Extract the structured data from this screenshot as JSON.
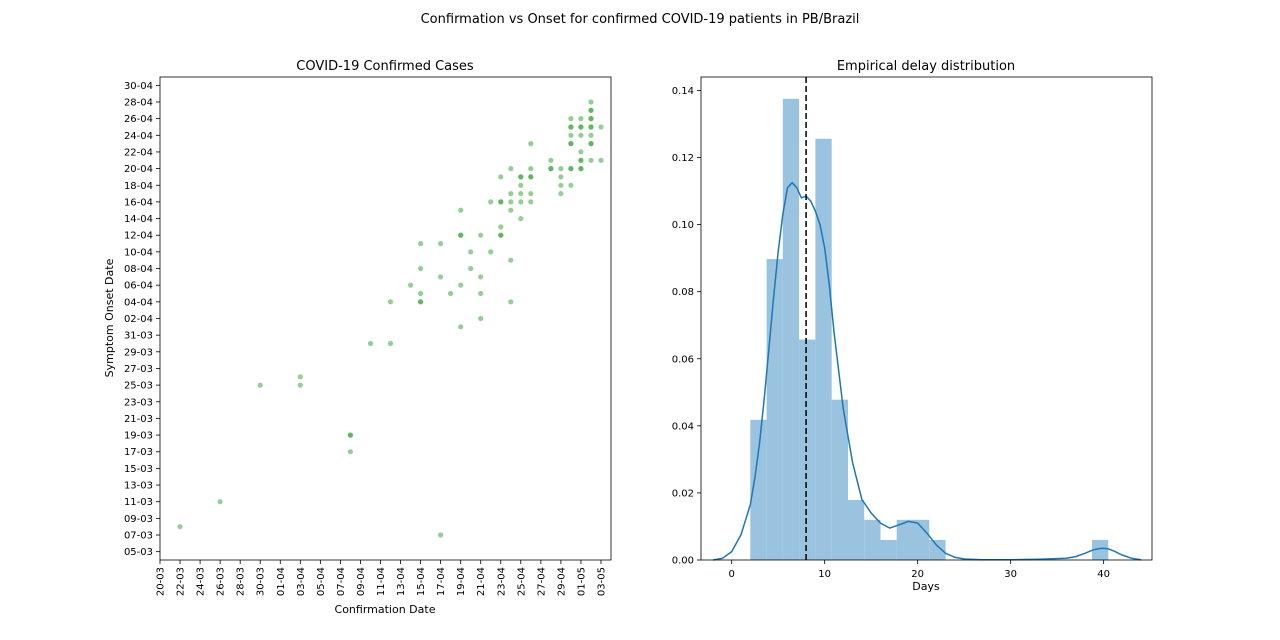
{
  "figure": {
    "title": "Confirmation vs Onset for confirmed COVID-19 patients in PB/Brazil"
  },
  "chart_data": [
    {
      "type": "scatter",
      "title": "COVID-19 Confirmed Cases",
      "xlabel": "Confirmation Date",
      "ylabel": "Symptom Onset Date",
      "x_ticks": [
        "20-03",
        "22-03",
        "24-03",
        "26-03",
        "28-03",
        "30-03",
        "01-04",
        "03-04",
        "05-04",
        "07-04",
        "09-04",
        "11-04",
        "13-04",
        "15-04",
        "17-04",
        "19-04",
        "21-04",
        "23-04",
        "25-04",
        "27-04",
        "29-04",
        "01-05",
        "03-05"
      ],
      "y_ticks": [
        "05-03",
        "07-03",
        "09-03",
        "11-03",
        "13-03",
        "15-03",
        "17-03",
        "19-03",
        "21-03",
        "23-03",
        "25-03",
        "27-03",
        "29-03",
        "31-03",
        "02-04",
        "04-04",
        "06-04",
        "08-04",
        "10-04",
        "12-04",
        "14-04",
        "16-04",
        "18-04",
        "20-04",
        "22-04",
        "24-04",
        "26-04",
        "28-04",
        "30-04"
      ],
      "xlim": [
        "20-03",
        "04-05"
      ],
      "ylim": [
        "04-03",
        "01-05"
      ],
      "marker_color": "#2ca02c",
      "points": [
        {
          "x": "22-03",
          "y": "08-03"
        },
        {
          "x": "26-03",
          "y": "11-03"
        },
        {
          "x": "30-03",
          "y": "25-03"
        },
        {
          "x": "03-04",
          "y": "25-03"
        },
        {
          "x": "03-04",
          "y": "26-03"
        },
        {
          "x": "08-04",
          "y": "17-03"
        },
        {
          "x": "08-04",
          "y": "19-03"
        },
        {
          "x": "08-04",
          "y": "19-03"
        },
        {
          "x": "10-04",
          "y": "30-03"
        },
        {
          "x": "12-04",
          "y": "30-03"
        },
        {
          "x": "12-04",
          "y": "04-04"
        },
        {
          "x": "14-04",
          "y": "06-04"
        },
        {
          "x": "15-04",
          "y": "04-04"
        },
        {
          "x": "15-04",
          "y": "04-04"
        },
        {
          "x": "15-04",
          "y": "05-04"
        },
        {
          "x": "15-04",
          "y": "08-04"
        },
        {
          "x": "15-04",
          "y": "11-04"
        },
        {
          "x": "17-04",
          "y": "07-03"
        },
        {
          "x": "17-04",
          "y": "07-04"
        },
        {
          "x": "17-04",
          "y": "11-04"
        },
        {
          "x": "18-04",
          "y": "05-04"
        },
        {
          "x": "19-04",
          "y": "01-04"
        },
        {
          "x": "19-04",
          "y": "06-04"
        },
        {
          "x": "19-04",
          "y": "12-04"
        },
        {
          "x": "19-04",
          "y": "12-04"
        },
        {
          "x": "19-04",
          "y": "15-04"
        },
        {
          "x": "20-04",
          "y": "08-04"
        },
        {
          "x": "20-04",
          "y": "10-04"
        },
        {
          "x": "21-04",
          "y": "02-04"
        },
        {
          "x": "21-04",
          "y": "05-04"
        },
        {
          "x": "21-04",
          "y": "07-04"
        },
        {
          "x": "21-04",
          "y": "12-04"
        },
        {
          "x": "22-04",
          "y": "10-04"
        },
        {
          "x": "22-04",
          "y": "16-04"
        },
        {
          "x": "23-04",
          "y": "12-04"
        },
        {
          "x": "23-04",
          "y": "12-04"
        },
        {
          "x": "23-04",
          "y": "13-04"
        },
        {
          "x": "23-04",
          "y": "16-04"
        },
        {
          "x": "23-04",
          "y": "16-04"
        },
        {
          "x": "23-04",
          "y": "19-04"
        },
        {
          "x": "24-04",
          "y": "04-04"
        },
        {
          "x": "24-04",
          "y": "09-04"
        },
        {
          "x": "24-04",
          "y": "15-04"
        },
        {
          "x": "24-04",
          "y": "16-04"
        },
        {
          "x": "24-04",
          "y": "17-04"
        },
        {
          "x": "24-04",
          "y": "20-04"
        },
        {
          "x": "25-04",
          "y": "14-04"
        },
        {
          "x": "25-04",
          "y": "16-04"
        },
        {
          "x": "25-04",
          "y": "17-04"
        },
        {
          "x": "25-04",
          "y": "18-04"
        },
        {
          "x": "25-04",
          "y": "19-04"
        },
        {
          "x": "25-04",
          "y": "19-04"
        },
        {
          "x": "26-04",
          "y": "16-04"
        },
        {
          "x": "26-04",
          "y": "17-04"
        },
        {
          "x": "26-04",
          "y": "19-04"
        },
        {
          "x": "26-04",
          "y": "19-04"
        },
        {
          "x": "26-04",
          "y": "20-04"
        },
        {
          "x": "26-04",
          "y": "23-04"
        },
        {
          "x": "28-04",
          "y": "20-04"
        },
        {
          "x": "28-04",
          "y": "20-04"
        },
        {
          "x": "28-04",
          "y": "21-04"
        },
        {
          "x": "29-04",
          "y": "17-04"
        },
        {
          "x": "29-04",
          "y": "18-04"
        },
        {
          "x": "29-04",
          "y": "19-04"
        },
        {
          "x": "29-04",
          "y": "20-04"
        },
        {
          "x": "30-04",
          "y": "18-04"
        },
        {
          "x": "30-04",
          "y": "20-04"
        },
        {
          "x": "30-04",
          "y": "20-04"
        },
        {
          "x": "30-04",
          "y": "23-04"
        },
        {
          "x": "30-04",
          "y": "23-04"
        },
        {
          "x": "30-04",
          "y": "24-04"
        },
        {
          "x": "30-04",
          "y": "25-04"
        },
        {
          "x": "30-04",
          "y": "25-04"
        },
        {
          "x": "30-04",
          "y": "26-04"
        },
        {
          "x": "01-05",
          "y": "20-04"
        },
        {
          "x": "01-05",
          "y": "20-04"
        },
        {
          "x": "01-05",
          "y": "21-04"
        },
        {
          "x": "01-05",
          "y": "21-04"
        },
        {
          "x": "01-05",
          "y": "22-04"
        },
        {
          "x": "01-05",
          "y": "24-04"
        },
        {
          "x": "01-05",
          "y": "25-04"
        },
        {
          "x": "01-05",
          "y": "25-04"
        },
        {
          "x": "01-05",
          "y": "26-04"
        },
        {
          "x": "02-05",
          "y": "21-04"
        },
        {
          "x": "02-05",
          "y": "23-04"
        },
        {
          "x": "02-05",
          "y": "23-04"
        },
        {
          "x": "02-05",
          "y": "24-04"
        },
        {
          "x": "02-05",
          "y": "25-04"
        },
        {
          "x": "02-05",
          "y": "25-04"
        },
        {
          "x": "02-05",
          "y": "26-04"
        },
        {
          "x": "02-05",
          "y": "26-04"
        },
        {
          "x": "02-05",
          "y": "27-04"
        },
        {
          "x": "02-05",
          "y": "27-04"
        },
        {
          "x": "02-05",
          "y": "28-04"
        },
        {
          "x": "03-05",
          "y": "21-04"
        },
        {
          "x": "03-05",
          "y": "25-04"
        }
      ]
    },
    {
      "type": "bar",
      "title": "Empirical delay distribution",
      "xlabel": "Days",
      "ylabel": "",
      "xlim": [
        -3.3,
        45.2
      ],
      "ylim": [
        0,
        0.144
      ],
      "x_ticks": [
        0,
        10,
        20,
        30,
        40
      ],
      "y_ticks": [
        0.0,
        0.02,
        0.04,
        0.06,
        0.08,
        0.1,
        0.12,
        0.14
      ],
      "bar_color": "#9ac3df",
      "bins": [
        {
          "x0": 2.0,
          "x1": 3.75,
          "value": 0.0418
        },
        {
          "x0": 3.75,
          "x1": 5.5,
          "value": 0.0897
        },
        {
          "x0": 5.5,
          "x1": 7.25,
          "value": 0.1375
        },
        {
          "x0": 7.25,
          "x1": 9.0,
          "value": 0.0657
        },
        {
          "x0": 9.0,
          "x1": 10.75,
          "value": 0.1256
        },
        {
          "x0": 10.75,
          "x1": 12.5,
          "value": 0.0478
        },
        {
          "x0": 12.5,
          "x1": 14.25,
          "value": 0.0179
        },
        {
          "x0": 14.25,
          "x1": 16.0,
          "value": 0.012
        },
        {
          "x0": 16.0,
          "x1": 17.75,
          "value": 0.006
        },
        {
          "x0": 17.75,
          "x1": 19.5,
          "value": 0.012
        },
        {
          "x0": 19.5,
          "x1": 21.25,
          "value": 0.012
        },
        {
          "x0": 21.25,
          "x1": 23.0,
          "value": 0.006
        },
        {
          "x0": 38.75,
          "x1": 40.5,
          "value": 0.006
        }
      ],
      "kde": {
        "color": "#1f77b4",
        "x": [
          -2,
          -1,
          0,
          1,
          2,
          2.5,
          3,
          3.5,
          4,
          4.5,
          5,
          5.5,
          6,
          6.5,
          7,
          7.5,
          8,
          8.5,
          9,
          9.5,
          10,
          10.5,
          11,
          12,
          13,
          14,
          15,
          16,
          17,
          18,
          19,
          20,
          21,
          22,
          23,
          24,
          25,
          27,
          30,
          33,
          36,
          37,
          38,
          38.5,
          39,
          39.5,
          40,
          40.5,
          41,
          42,
          43,
          44
        ],
        "y": [
          0,
          0.0005,
          0.0025,
          0.0075,
          0.0165,
          0.0245,
          0.035,
          0.048,
          0.063,
          0.078,
          0.092,
          0.103,
          0.111,
          0.1125,
          0.111,
          0.108,
          0.1085,
          0.107,
          0.104,
          0.1,
          0.093,
          0.082,
          0.068,
          0.045,
          0.029,
          0.018,
          0.014,
          0.011,
          0.0095,
          0.0105,
          0.0115,
          0.011,
          0.008,
          0.0045,
          0.002,
          0.0008,
          0.0003,
          0.0001,
          0.0001,
          0.0002,
          0.0005,
          0.001,
          0.002,
          0.0026,
          0.0031,
          0.0034,
          0.0035,
          0.0033,
          0.0028,
          0.0015,
          0.0005,
          0.0001
        ]
      },
      "vline": {
        "x": 8.0,
        "style": "dashed",
        "color": "#000000"
      }
    }
  ]
}
